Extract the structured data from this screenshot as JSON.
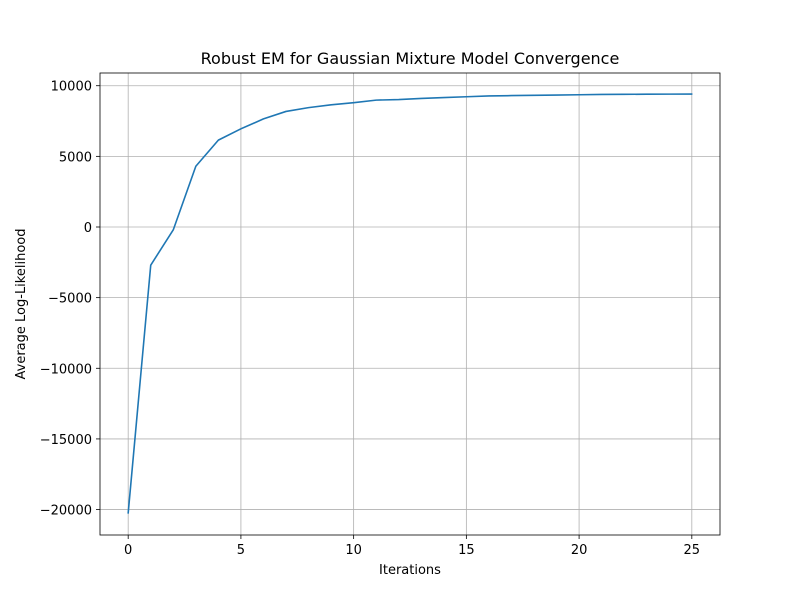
{
  "chart_data": {
    "type": "line",
    "title": "Robust EM for Gaussian Mixture Model Convergence",
    "xlabel": "Iterations",
    "ylabel": "Average Log-Likelihood",
    "xlim": [
      -1.25,
      26.25
    ],
    "ylim": [
      -21800,
      10900
    ],
    "xticks": [
      0,
      5,
      10,
      15,
      20,
      25
    ],
    "xtick_labels": [
      "0",
      "5",
      "10",
      "15",
      "20",
      "25"
    ],
    "yticks": [
      -20000,
      -15000,
      -10000,
      -5000,
      0,
      5000,
      10000
    ],
    "ytick_labels": [
      "−20000",
      "−15000",
      "−10000",
      "−5000",
      "0",
      "5000",
      "10000"
    ],
    "grid": true,
    "line_color": "#1f77b4",
    "grid_color": "#b0b0b0",
    "series": [
      {
        "x": [
          0,
          1,
          2,
          3,
          4,
          5,
          6,
          7,
          8,
          9,
          10,
          11,
          12,
          13,
          14,
          15,
          16,
          17,
          18,
          19,
          20,
          21,
          22,
          23,
          24,
          25
        ],
        "values": [
          -20250,
          -2700,
          -200,
          4300,
          6150,
          6950,
          7650,
          8180,
          8450,
          8650,
          8800,
          8980,
          9020,
          9100,
          9160,
          9220,
          9280,
          9300,
          9320,
          9340,
          9360,
          9380,
          9390,
          9400,
          9405,
          9410
        ]
      }
    ]
  }
}
